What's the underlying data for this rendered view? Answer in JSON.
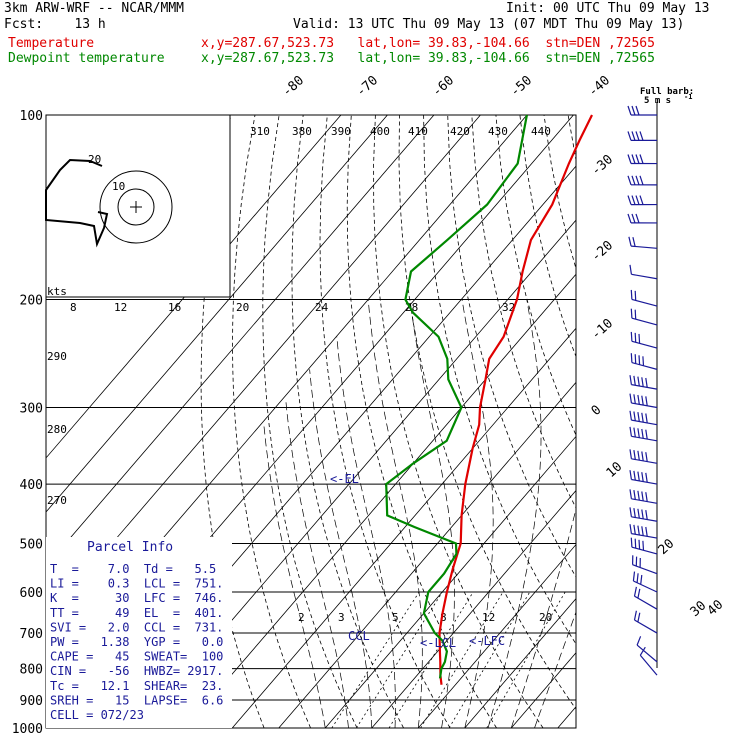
{
  "header": {
    "model": "3km ARW-WRF -- NCAR/MMM",
    "init": "Init: 00 UTC Thu 09 May 13",
    "fcst": "Fcst:    13 h",
    "valid": "Valid: 13 UTC Thu 09 May 13 (07 MDT Thu 09 May 13)",
    "temp_label": "Temperature",
    "temp_loc": "x,y=287.67,523.73   lat,lon= 39.83,-104.66  stn=DEN ,72565",
    "dew_label": "Dewpoint temperature",
    "dew_loc": "x,y=287.67,523.73   lat,lon= 39.83,-104.66  stn=DEN ,72565"
  },
  "colors": {
    "temperature": "#e00000",
    "dewpoint": "#008800",
    "barbs": "#1a1a99",
    "parcel_text": "#1a1a99"
  },
  "wind_legend": {
    "title": "Full barb:",
    "value": "5 m s",
    "exp": "-1"
  },
  "hodograph": {
    "unit": "kts",
    "ring_labels": [
      "20",
      "10"
    ]
  },
  "parcel_info": {
    "title": "Parcel Info",
    "rows": [
      "T  =    7.0  Td =   5.5",
      "LI =    0.3  LCL =  751.",
      "K  =     30  LFC =  746.",
      "TT =     49  EL  =  401.",
      "SVI =   2.0  CCL =  731.",
      "PW =   1.38  YGP =   0.0",
      "CAPE =   45  SWEAT=  100",
      "CIN =   -56  HWBZ= 2917.",
      "Tc =   12.1  SHEAR=  23.",
      "SREH =   15  LAPSE=  6.6",
      "CELL = 072/23"
    ]
  },
  "level_markers": {
    "el": "<-EL",
    "lcl": "<-LCL",
    "lfc": "<-LFC",
    "ccl": "CCL"
  },
  "chart_data": {
    "type": "line",
    "title": "",
    "y_axis": {
      "scale": "log",
      "range": [
        1000,
        100
      ],
      "labels": [
        100,
        200,
        300,
        400,
        500,
        600,
        700,
        800,
        900,
        1000
      ],
      "grid_lines": [
        100,
        200,
        300,
        400,
        500,
        600,
        700,
        800,
        900,
        1000
      ]
    },
    "isotherm_labels": [
      -80,
      -70,
      -60,
      -50,
      -40,
      -30,
      -20,
      -10,
      0,
      10,
      20,
      30,
      40
    ],
    "isotherm_label_text": [
      "-80",
      "-70",
      "-60",
      "-50",
      "-40",
      "-30",
      "-20",
      "-10",
      "0",
      "10",
      "20",
      "30",
      "40"
    ],
    "theta_labels": [
      "310",
      "380",
      "390",
      "400",
      "410",
      "420",
      "430",
      "440"
    ],
    "theta_left_labels": [
      "290",
      "280",
      "270"
    ],
    "mixing_ratio_labels": [
      "2",
      "3",
      "5",
      "8",
      "12",
      "20"
    ],
    "hodograph_speed_labels": [
      "8",
      "12",
      "16",
      "20",
      "24",
      "28",
      "32"
    ],
    "series": [
      {
        "name": "Temperature",
        "points": [
          [
            850,
            7.0
          ],
          [
            820,
            5.0
          ],
          [
            780,
            2.5
          ],
          [
            750,
            0.5
          ],
          [
            700,
            -3
          ],
          [
            650,
            -6
          ],
          [
            600,
            -9
          ],
          [
            550,
            -12
          ],
          [
            500,
            -15
          ],
          [
            450,
            -20
          ],
          [
            400,
            -25
          ],
          [
            350,
            -30
          ],
          [
            320,
            -33
          ],
          [
            300,
            -36
          ],
          [
            270,
            -40
          ],
          [
            250,
            -43
          ],
          [
            230,
            -44
          ],
          [
            200,
            -48
          ],
          [
            180,
            -52
          ],
          [
            160,
            -56
          ],
          [
            140,
            -58
          ],
          [
            120,
            -62
          ],
          [
            110,
            -64
          ],
          [
            100,
            -66
          ]
        ]
      },
      {
        "name": "Dewpoint temperature",
        "points": [
          [
            830,
            5.5
          ],
          [
            800,
            4.0
          ],
          [
            780,
            3.5
          ],
          [
            750,
            2.0
          ],
          [
            720,
            -1.0
          ],
          [
            700,
            -4
          ],
          [
            650,
            -10
          ],
          [
            600,
            -13
          ],
          [
            560,
            -13
          ],
          [
            520,
            -14
          ],
          [
            500,
            -16
          ],
          [
            470,
            -28
          ],
          [
            450,
            -36
          ],
          [
            400,
            -42
          ],
          [
            370,
            -40
          ],
          [
            340,
            -37
          ],
          [
            300,
            -40
          ],
          [
            270,
            -48
          ],
          [
            250,
            -52
          ],
          [
            230,
            -58
          ],
          [
            210,
            -68
          ],
          [
            200,
            -72
          ],
          [
            180,
            -76
          ],
          [
            160,
            -74
          ],
          [
            140,
            -72
          ],
          [
            120,
            -73
          ],
          [
            100,
            -80
          ]
        ]
      }
    ],
    "wind_barbs_ms": [
      {
        "p": 100,
        "speed": 15,
        "dir": 270
      },
      {
        "p": 110,
        "speed": 20,
        "dir": 270
      },
      {
        "p": 120,
        "speed": 20,
        "dir": 270
      },
      {
        "p": 130,
        "speed": 20,
        "dir": 270
      },
      {
        "p": 140,
        "speed": 20,
        "dir": 270
      },
      {
        "p": 150,
        "speed": 15,
        "dir": 270
      },
      {
        "p": 165,
        "speed": 10,
        "dir": 275
      },
      {
        "p": 185,
        "speed": 5,
        "dir": 280
      },
      {
        "p": 205,
        "speed": 10,
        "dir": 285
      },
      {
        "p": 220,
        "speed": 10,
        "dir": 285
      },
      {
        "p": 240,
        "speed": 15,
        "dir": 285
      },
      {
        "p": 260,
        "speed": 20,
        "dir": 285
      },
      {
        "p": 280,
        "speed": 25,
        "dir": 280
      },
      {
        "p": 300,
        "speed": 25,
        "dir": 280
      },
      {
        "p": 320,
        "speed": 25,
        "dir": 280
      },
      {
        "p": 340,
        "speed": 25,
        "dir": 280
      },
      {
        "p": 370,
        "speed": 25,
        "dir": 280
      },
      {
        "p": 400,
        "speed": 25,
        "dir": 280
      },
      {
        "p": 430,
        "speed": 25,
        "dir": 280
      },
      {
        "p": 460,
        "speed": 25,
        "dir": 280
      },
      {
        "p": 490,
        "speed": 25,
        "dir": 280
      },
      {
        "p": 520,
        "speed": 20,
        "dir": 285
      },
      {
        "p": 560,
        "speed": 15,
        "dir": 290
      },
      {
        "p": 600,
        "speed": 15,
        "dir": 295
      },
      {
        "p": 640,
        "speed": 10,
        "dir": 300
      },
      {
        "p": 700,
        "speed": 10,
        "dir": 300
      },
      {
        "p": 780,
        "speed": 5,
        "dir": 310
      },
      {
        "p": 820,
        "speed": 5,
        "dir": 320
      }
    ]
  }
}
